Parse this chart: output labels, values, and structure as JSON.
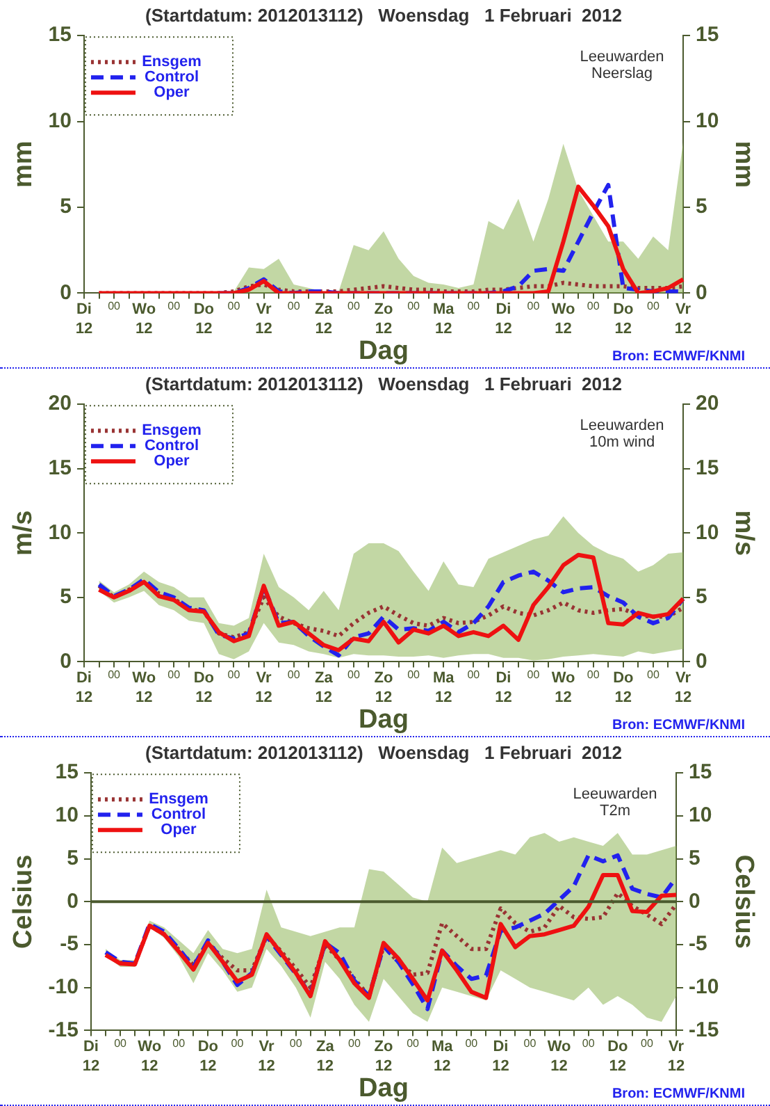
{
  "chart_data": [
    {
      "type": "line",
      "title": "(Startdatum: 2012013112)   Woensdag   1 Februari  2012",
      "xlabel": "Dag",
      "ylabel": "mm",
      "y2label": "mm",
      "legend": "top left",
      "grid": false,
      "categories": [
        "Di\n12",
        null,
        "00",
        null,
        "Wo\n12",
        null,
        "00",
        null,
        "Do\n12",
        null,
        "00",
        null,
        "Vr\n12",
        null,
        "00",
        null,
        "Za\n12",
        null,
        "00",
        null,
        "Zo\n12",
        null,
        "00",
        null,
        "Ma\n12",
        null,
        "00",
        null,
        "Di\n12",
        null,
        "00",
        null,
        "Wo\n12",
        null,
        "00",
        null,
        "Do\n12",
        null,
        "00",
        null,
        "Vr\n12"
      ],
      "series": [
        {
          "name": "Ensgem",
          "color": "#993333",
          "line_style": "dotted",
          "values": [
            null,
            0,
            0,
            0,
            0,
            0,
            0,
            0,
            0,
            0,
            0.1,
            0.4,
            0.5,
            0.2,
            0.1,
            0.1,
            0.1,
            0.1,
            0.2,
            0.3,
            0.4,
            0.3,
            0.2,
            0.2,
            0.1,
            0.1,
            0.1,
            0.2,
            0.2,
            0.3,
            0.4,
            0.4,
            0.6,
            0.5,
            0.4,
            0.4,
            0.4,
            0.3,
            0.3,
            0.3,
            0.4
          ],
          "lower": [
            null,
            0,
            0,
            0,
            0,
            0,
            0,
            0,
            0,
            0,
            0,
            0,
            0,
            0,
            0,
            0,
            0,
            0,
            0,
            0,
            0,
            0,
            0,
            0,
            0,
            0,
            0,
            0,
            0,
            0,
            0,
            0,
            0,
            0,
            0,
            0,
            0,
            0,
            0,
            0,
            0
          ],
          "upper": [
            null,
            0,
            0,
            0,
            0,
            0,
            0,
            0,
            0,
            0,
            0.1,
            1.5,
            1.4,
            2.0,
            0.5,
            0.3,
            0.1,
            0.1,
            2.8,
            2.5,
            3.6,
            2.0,
            1.0,
            0.6,
            0.5,
            0.3,
            0.5,
            4.2,
            3.7,
            5.5,
            3.0,
            5.5,
            8.7,
            6.0,
            4.5,
            3.0,
            3.0,
            2.0,
            3.3,
            2.5,
            8.8
          ]
        },
        {
          "name": "Control",
          "color": "#2222ee",
          "line_style": "dashed",
          "values": [
            null,
            null,
            null,
            null,
            null,
            null,
            null,
            null,
            null,
            0,
            0,
            0.3,
            0.8,
            0.1,
            0,
            0.1,
            0.1,
            0,
            0,
            0,
            0,
            0,
            0,
            0,
            0,
            0,
            0,
            0,
            0.1,
            0.4,
            1.3,
            1.4,
            1.3,
            3.0,
            4.7,
            6.3,
            0.3,
            0.2,
            0.1,
            0.1,
            0.1
          ]
        },
        {
          "name": "Oper",
          "color": "#ee1111",
          "line_style": "solid",
          "values": [
            null,
            0,
            0,
            0,
            0,
            0,
            0,
            0,
            0,
            0,
            0,
            0.2,
            0.7,
            0,
            0,
            0,
            0,
            0,
            0,
            0,
            0,
            0,
            0,
            0,
            0,
            0,
            0,
            0,
            0,
            0,
            0,
            0.1,
            3.0,
            6.2,
            5.1,
            3.9,
            1.4,
            0,
            0.1,
            0.3,
            0.8
          ]
        }
      ],
      "ylim": [
        0,
        15
      ],
      "yticks": [
        0,
        5,
        10,
        15
      ],
      "y2lim": [
        0,
        15
      ],
      "y2ticks": [
        0,
        5,
        10,
        15
      ],
      "annotations": [
        "Leeuwarden\nNeerslag",
        "Bron: ECMWF/KNMI"
      ]
    },
    {
      "type": "line",
      "title": "(Startdatum: 2012013112)   Woensdag   1 Februari  2012",
      "xlabel": "Dag",
      "ylabel": "m/s",
      "y2label": "m/s",
      "legend": "top left",
      "grid": false,
      "categories": [
        "Di\n12",
        null,
        "00",
        null,
        "Wo\n12",
        null,
        "00",
        null,
        "Do\n12",
        null,
        "00",
        null,
        "Vr\n12",
        null,
        "00",
        null,
        "Za\n12",
        null,
        "00",
        null,
        "Zo\n12",
        null,
        "00",
        null,
        "Ma\n12",
        null,
        "00",
        null,
        "Di\n12",
        null,
        "00",
        null,
        "Wo\n12",
        null,
        "00",
        null,
        "Do\n12",
        null,
        "00",
        null,
        "Vr\n12"
      ],
      "series": [
        {
          "name": "Ensgem",
          "color": "#993333",
          "line_style": "dotted",
          "values": [
            null,
            5.9,
            5.0,
            5.6,
            6.2,
            5.3,
            4.9,
            4.1,
            3.9,
            2.2,
            1.9,
            2.3,
            5.0,
            3.5,
            3.0,
            2.6,
            2.4,
            2.0,
            3.0,
            3.8,
            4.3,
            3.6,
            3.0,
            2.8,
            3.4,
            3.0,
            3.1,
            3.6,
            4.3,
            3.8,
            3.6,
            4.0,
            4.6,
            4.0,
            3.8,
            4.0,
            4.1,
            3.6,
            3.5,
            3.5,
            4.2
          ],
          "lower": [
            null,
            5.5,
            4.6,
            5.0,
            5.5,
            4.4,
            4.0,
            3.2,
            3.0,
            0.6,
            0.2,
            0.8,
            3.0,
            1.5,
            1.3,
            0.8,
            0.6,
            0.3,
            0.6,
            0.5,
            0.5,
            0.4,
            0.4,
            0.5,
            0.3,
            0.5,
            0.6,
            0.6,
            0.3,
            0.3,
            0.1,
            0.2,
            0.4,
            0.5,
            0.6,
            0.5,
            0.4,
            0.8,
            0.6,
            0.8,
            1.0
          ],
          "upper": [
            null,
            6.3,
            5.4,
            6.0,
            7.0,
            6.2,
            5.8,
            5.0,
            5.0,
            3.0,
            2.8,
            3.4,
            8.4,
            5.8,
            5.0,
            4.0,
            5.5,
            4.0,
            8.4,
            9.2,
            9.2,
            8.6,
            7.0,
            5.5,
            7.8,
            6.0,
            5.8,
            8.0,
            8.5,
            9.0,
            9.5,
            9.8,
            11.3,
            10.0,
            9.0,
            8.4,
            8.0,
            7.0,
            7.5,
            8.4,
            8.5
          ]
        },
        {
          "name": "Control",
          "color": "#2222ee",
          "line_style": "dashed",
          "values": [
            null,
            6.0,
            5.1,
            5.6,
            6.4,
            5.4,
            5.0,
            4.2,
            4.0,
            2.1,
            1.8,
            2.2,
            5.8,
            3.0,
            3.1,
            2.0,
            1.2,
            0.5,
            1.9,
            2.2,
            3.5,
            2.5,
            2.6,
            2.4,
            3.1,
            2.3,
            3.0,
            4.3,
            6.2,
            6.7,
            7.0,
            6.3,
            5.4,
            5.7,
            5.8,
            5.1,
            4.6,
            3.5,
            3.0,
            3.4,
            4.9
          ]
        },
        {
          "name": "Oper",
          "color": "#ee1111",
          "line_style": "solid",
          "values": [
            null,
            5.6,
            5.0,
            5.5,
            6.2,
            5.1,
            4.8,
            4.0,
            3.9,
            2.3,
            1.6,
            2.0,
            5.9,
            2.8,
            3.1,
            2.2,
            1.3,
            0.9,
            1.8,
            1.6,
            3.1,
            1.5,
            2.5,
            2.2,
            2.8,
            2.0,
            2.3,
            2.0,
            2.8,
            1.7,
            4.4,
            5.8,
            7.5,
            8.3,
            8.1,
            3.0,
            2.9,
            3.8,
            3.5,
            3.7,
            4.9
          ]
        }
      ],
      "ylim": [
        0,
        20
      ],
      "yticks": [
        0,
        5,
        10,
        15,
        20
      ],
      "y2lim": [
        0,
        20
      ],
      "y2ticks": [
        0,
        5,
        10,
        15,
        20
      ],
      "annotations": [
        "Leeuwarden\n10m wind",
        "Bron: ECMWF/KNMI"
      ]
    },
    {
      "type": "line",
      "title": "(Startdatum: 2012013112)   Woensdag   1 Februari  2012",
      "xlabel": "Dag",
      "ylabel": "Celsius",
      "y2label": "Celsius",
      "legend": "top left",
      "grid": false,
      "categories": [
        "Di\n12",
        null,
        "00",
        null,
        "Wo\n12",
        null,
        "00",
        null,
        "Do\n12",
        null,
        "00",
        null,
        "Vr\n12",
        null,
        "00",
        null,
        "Za\n12",
        null,
        "00",
        null,
        "Zo\n12",
        null,
        "00",
        null,
        "Ma\n12",
        null,
        "00",
        null,
        "Di\n12",
        null,
        "00",
        null,
        "Wo\n12",
        null,
        "00",
        null,
        "Do\n12",
        null,
        "00",
        null,
        "Vr\n12"
      ],
      "series": [
        {
          "name": "Ensgem",
          "color": "#993333",
          "line_style": "dotted",
          "values": [
            null,
            null,
            -7.1,
            -7.2,
            -2.8,
            -3.8,
            -5.6,
            -7.4,
            -4.8,
            -6.6,
            -8.0,
            -8.0,
            -4.0,
            -5.8,
            -7.8,
            -10.0,
            -5.0,
            -6.8,
            -9.0,
            -11.0,
            -5.2,
            -7.0,
            -8.5,
            -8.3,
            -2.5,
            -4.0,
            -5.5,
            -5.5,
            -0.8,
            -2.5,
            -3.5,
            -3.0,
            -0.5,
            -1.8,
            -2.0,
            -1.8,
            1.0,
            -0.5,
            -1.5,
            -2.6,
            -0.3
          ],
          "lower": [
            null,
            -6.3,
            -7.6,
            -7.6,
            -3.0,
            -4.2,
            -6.4,
            -9.5,
            -6.0,
            -8.0,
            -10.5,
            -10.0,
            -5.5,
            -7.5,
            -10.0,
            -13.5,
            -7.0,
            -9.0,
            -12.0,
            -14.0,
            -9.0,
            -11.0,
            -13.0,
            -14.0,
            -10.0,
            -10.5,
            -11.0,
            -11.5,
            -8.0,
            -9.0,
            -10.0,
            -10.5,
            -11.0,
            -11.5,
            -10.0,
            -12.0,
            -11.0,
            -12.0,
            -13.5,
            -14.0,
            -11.0
          ],
          "upper": [
            null,
            -5.5,
            -6.8,
            -6.8,
            -2.2,
            -3.0,
            -4.5,
            -6.0,
            -3.3,
            -5.5,
            -6.0,
            -5.5,
            1.4,
            -3.0,
            -3.5,
            -4.0,
            -3.5,
            -3.0,
            -3.0,
            3.8,
            3.5,
            2.0,
            0.5,
            0.0,
            6.3,
            4.5,
            5.0,
            5.5,
            6.0,
            5.5,
            7.5,
            8.0,
            7.0,
            7.5,
            7.0,
            6.5,
            8.0,
            5.5,
            5.5,
            6.0,
            6.5
          ]
        },
        {
          "name": "Control",
          "color": "#2222ee",
          "line_style": "dashed",
          "values": [
            null,
            -5.9,
            -7.0,
            -7.2,
            -2.6,
            -3.5,
            -5.5,
            -7.6,
            -4.5,
            -7.0,
            -9.7,
            -8.3,
            -4.0,
            -6.2,
            -8.4,
            -10.8,
            -4.8,
            -6.0,
            -9.2,
            -11.0,
            -5.2,
            -7.0,
            -9.6,
            -12.5,
            -5.7,
            -7.5,
            -9.0,
            -8.6,
            -3.4,
            -3.0,
            -2.2,
            -1.4,
            0.2,
            1.8,
            5.4,
            4.7,
            5.4,
            1.5,
            0.9,
            0.5,
            2.8
          ]
        },
        {
          "name": "Oper",
          "color": "#ee1111",
          "line_style": "solid",
          "values": [
            null,
            -6.2,
            -7.2,
            -7.3,
            -2.8,
            -3.8,
            -5.8,
            -7.9,
            -4.8,
            -7.0,
            -9.3,
            -8.5,
            -3.8,
            -6.0,
            -8.3,
            -11.0,
            -4.6,
            -6.8,
            -9.5,
            -11.2,
            -4.8,
            -6.6,
            -9.0,
            -11.5,
            -5.7,
            -8.0,
            -10.5,
            -11.2,
            -2.6,
            -5.3,
            -4.0,
            -3.8,
            -3.3,
            -2.8,
            -0.6,
            3.1,
            3.1,
            -1.1,
            -1.2,
            0.7,
            0.8
          ]
        }
      ],
      "ylim": [
        -15,
        15
      ],
      "yticks": [
        -15,
        -10,
        -5,
        0,
        5,
        10,
        15
      ],
      "y2lim": [
        -15,
        15
      ],
      "y2ticks": [
        -15,
        -10,
        -5,
        0,
        5,
        10,
        15
      ],
      "ref_lines": [
        {
          "axis": "y",
          "value": 0,
          "color": "#4b5a2e"
        }
      ],
      "annotations": [
        "Leeuwarden\nT2m",
        "Bron: ECMWF/KNMI"
      ]
    }
  ]
}
